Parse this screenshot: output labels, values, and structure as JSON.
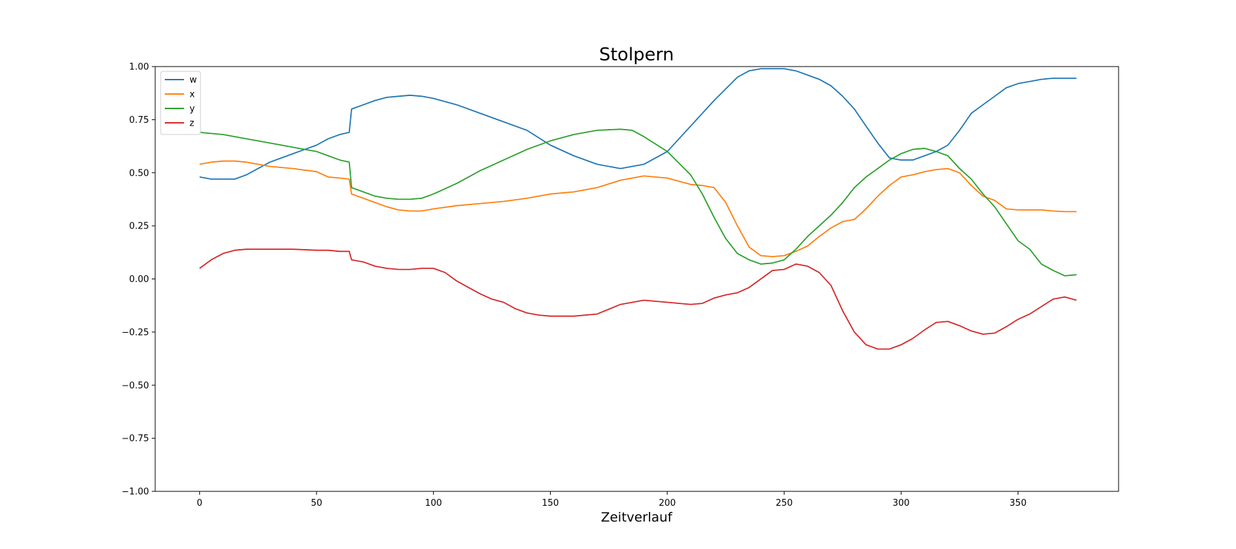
{
  "chart_data": {
    "type": "line",
    "title": "Stolpern",
    "xlabel": "Zeitverlauf",
    "ylabel": "",
    "xlim": [
      -19,
      393
    ],
    "ylim": [
      -1.0,
      1.0
    ],
    "xticks": [
      0,
      50,
      100,
      150,
      200,
      250,
      300,
      350
    ],
    "yticks": [
      -1.0,
      -0.75,
      -0.5,
      -0.25,
      0.0,
      0.25,
      0.5,
      0.75,
      1.0
    ],
    "xtick_labels": [
      "0",
      "50",
      "100",
      "150",
      "200",
      "250",
      "300",
      "350"
    ],
    "ytick_labels": [
      "−1.00",
      "−0.75",
      "−0.50",
      "−0.25",
      "0.00",
      "0.25",
      "0.50",
      "0.75",
      "1.00"
    ],
    "grid": false,
    "legend_position": "top-left",
    "series": [
      {
        "name": "w",
        "color": "#1f77b4",
        "x": [
          0,
          5,
          10,
          15,
          20,
          25,
          30,
          35,
          40,
          45,
          50,
          55,
          60,
          64,
          65,
          70,
          75,
          80,
          85,
          90,
          95,
          100,
          110,
          120,
          130,
          140,
          150,
          160,
          170,
          180,
          190,
          200,
          210,
          220,
          230,
          235,
          240,
          245,
          250,
          255,
          260,
          265,
          270,
          275,
          280,
          285,
          290,
          295,
          300,
          305,
          310,
          315,
          320,
          325,
          330,
          335,
          340,
          345,
          350,
          355,
          360,
          365,
          370,
          375
        ],
        "y": [
          0.48,
          0.47,
          0.47,
          0.47,
          0.49,
          0.52,
          0.55,
          0.57,
          0.59,
          0.61,
          0.63,
          0.66,
          0.68,
          0.69,
          0.8,
          0.82,
          0.84,
          0.855,
          0.86,
          0.865,
          0.86,
          0.85,
          0.82,
          0.78,
          0.74,
          0.7,
          0.63,
          0.58,
          0.54,
          0.52,
          0.54,
          0.6,
          0.72,
          0.84,
          0.95,
          0.98,
          0.99,
          0.99,
          0.99,
          0.98,
          0.96,
          0.94,
          0.91,
          0.86,
          0.8,
          0.72,
          0.64,
          0.57,
          0.56,
          0.56,
          0.58,
          0.6,
          0.63,
          0.7,
          0.78,
          0.82,
          0.86,
          0.9,
          0.92,
          0.93,
          0.94,
          0.945,
          0.945,
          0.945
        ]
      },
      {
        "name": "x",
        "color": "#ff7f0e",
        "x": [
          0,
          5,
          10,
          15,
          20,
          25,
          30,
          40,
          50,
          55,
          60,
          64,
          65,
          70,
          75,
          80,
          85,
          90,
          95,
          100,
          110,
          120,
          130,
          140,
          150,
          160,
          170,
          180,
          190,
          200,
          210,
          215,
          220,
          225,
          230,
          235,
          240,
          245,
          250,
          255,
          260,
          265,
          270,
          275,
          280,
          285,
          290,
          295,
          300,
          305,
          310,
          315,
          320,
          325,
          330,
          335,
          340,
          345,
          350,
          355,
          360,
          365,
          370,
          375
        ],
        "y": [
          0.54,
          0.55,
          0.555,
          0.555,
          0.55,
          0.54,
          0.53,
          0.52,
          0.505,
          0.48,
          0.475,
          0.47,
          0.4,
          0.38,
          0.36,
          0.34,
          0.325,
          0.32,
          0.32,
          0.33,
          0.345,
          0.355,
          0.365,
          0.38,
          0.4,
          0.41,
          0.43,
          0.465,
          0.485,
          0.475,
          0.445,
          0.44,
          0.43,
          0.36,
          0.25,
          0.15,
          0.11,
          0.105,
          0.11,
          0.13,
          0.155,
          0.2,
          0.24,
          0.27,
          0.28,
          0.33,
          0.39,
          0.44,
          0.48,
          0.49,
          0.505,
          0.515,
          0.52,
          0.5,
          0.44,
          0.39,
          0.37,
          0.33,
          0.325,
          0.325,
          0.325,
          0.32,
          0.317,
          0.317
        ]
      },
      {
        "name": "y",
        "color": "#2ca02c",
        "x": [
          0,
          5,
          10,
          15,
          20,
          25,
          30,
          35,
          40,
          45,
          50,
          55,
          60,
          64,
          65,
          70,
          75,
          80,
          85,
          90,
          95,
          100,
          110,
          120,
          130,
          140,
          150,
          160,
          170,
          180,
          185,
          190,
          200,
          210,
          215,
          220,
          225,
          230,
          235,
          240,
          245,
          250,
          255,
          260,
          265,
          270,
          275,
          280,
          285,
          290,
          295,
          300,
          305,
          310,
          315,
          320,
          325,
          330,
          335,
          340,
          345,
          350,
          355,
          360,
          365,
          370,
          375
        ],
        "y": [
          0.69,
          0.685,
          0.68,
          0.67,
          0.66,
          0.65,
          0.64,
          0.63,
          0.62,
          0.61,
          0.6,
          0.58,
          0.56,
          0.55,
          0.43,
          0.41,
          0.39,
          0.38,
          0.375,
          0.375,
          0.38,
          0.4,
          0.45,
          0.51,
          0.56,
          0.61,
          0.65,
          0.68,
          0.7,
          0.705,
          0.7,
          0.67,
          0.6,
          0.49,
          0.4,
          0.29,
          0.19,
          0.12,
          0.09,
          0.07,
          0.075,
          0.09,
          0.14,
          0.2,
          0.25,
          0.3,
          0.36,
          0.43,
          0.48,
          0.52,
          0.56,
          0.59,
          0.61,
          0.615,
          0.6,
          0.58,
          0.52,
          0.47,
          0.4,
          0.34,
          0.26,
          0.18,
          0.14,
          0.07,
          0.04,
          0.015,
          0.02
        ]
      },
      {
        "name": "z",
        "color": "#d62728",
        "x": [
          0,
          5,
          10,
          15,
          20,
          25,
          30,
          40,
          50,
          55,
          60,
          64,
          65,
          70,
          75,
          80,
          85,
          90,
          95,
          100,
          105,
          110,
          115,
          120,
          125,
          130,
          135,
          140,
          145,
          150,
          160,
          170,
          180,
          190,
          200,
          210,
          215,
          220,
          225,
          230,
          235,
          240,
          245,
          250,
          255,
          260,
          265,
          270,
          275,
          280,
          285,
          290,
          295,
          300,
          305,
          310,
          315,
          320,
          325,
          330,
          335,
          340,
          345,
          350,
          355,
          360,
          365,
          370,
          375
        ],
        "y": [
          0.05,
          0.09,
          0.12,
          0.135,
          0.14,
          0.14,
          0.14,
          0.14,
          0.135,
          0.135,
          0.13,
          0.13,
          0.09,
          0.08,
          0.06,
          0.05,
          0.045,
          0.045,
          0.05,
          0.05,
          0.03,
          -0.01,
          -0.04,
          -0.07,
          -0.095,
          -0.11,
          -0.14,
          -0.16,
          -0.17,
          -0.175,
          -0.175,
          -0.165,
          -0.12,
          -0.1,
          -0.11,
          -0.12,
          -0.115,
          -0.09,
          -0.075,
          -0.065,
          -0.04,
          0.0,
          0.04,
          0.045,
          0.07,
          0.06,
          0.03,
          -0.03,
          -0.15,
          -0.25,
          -0.31,
          -0.33,
          -0.33,
          -0.31,
          -0.28,
          -0.24,
          -0.205,
          -0.2,
          -0.22,
          -0.245,
          -0.26,
          -0.255,
          -0.225,
          -0.19,
          -0.165,
          -0.13,
          -0.095,
          -0.085,
          -0.1
        ]
      }
    ]
  }
}
